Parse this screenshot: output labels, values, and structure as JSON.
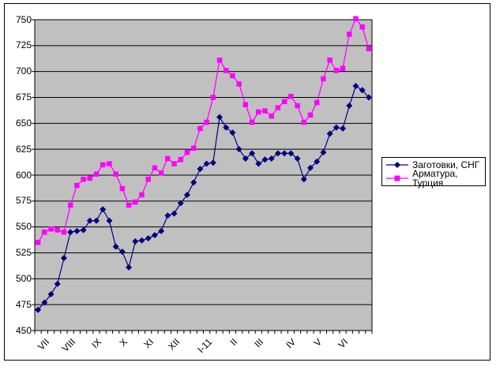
{
  "colors": {
    "background": "#FFFFFF",
    "frame_border": "#000000",
    "plot_background": "#C0C0C0",
    "gridline": "#000000",
    "text": "#000000",
    "series_billet": "#000080",
    "series_rebar": "#FF00FF"
  },
  "chart_data": {
    "type": "line",
    "title": "",
    "xlabel": "",
    "ylabel": "",
    "ylim": [
      450,
      750
    ],
    "y_tick_step": 25,
    "y_ticks": [
      750,
      725,
      700,
      675,
      650,
      625,
      600,
      575,
      550,
      525,
      500,
      475,
      450
    ],
    "n_points": 52,
    "grid": true,
    "legend_position": "right",
    "x_month_labels": [
      {
        "label": "VII",
        "index": 1
      },
      {
        "label": "VIII",
        "index": 5
      },
      {
        "label": "IX",
        "index": 9
      },
      {
        "label": "X",
        "index": 13
      },
      {
        "label": "XI",
        "index": 17
      },
      {
        "label": "XII",
        "index": 21
      },
      {
        "label": "I-11",
        "index": 26
      },
      {
        "label": "II",
        "index": 30
      },
      {
        "label": "III",
        "index": 34
      },
      {
        "label": "IV",
        "index": 39
      },
      {
        "label": "V",
        "index": 43
      },
      {
        "label": "VI",
        "index": 47
      }
    ],
    "series": [
      {
        "name": "Заготовки, СНГ",
        "color": "#000080",
        "marker": "diamond",
        "values": [
          470,
          477,
          485,
          495,
          520,
          545,
          546,
          547,
          556,
          556,
          567,
          556,
          531,
          526,
          511,
          536,
          537,
          539,
          542,
          546,
          561,
          563,
          573,
          581,
          593,
          606,
          611,
          612,
          656,
          646,
          641,
          625,
          616,
          621,
          611,
          615,
          616,
          621,
          621,
          621,
          616,
          596,
          607,
          613,
          622,
          640,
          646,
          645,
          667,
          686,
          682,
          675
        ]
      },
      {
        "name": "Арматура, Турция",
        "color": "#FF00FF",
        "marker": "square",
        "values": [
          535,
          545,
          548,
          547,
          545,
          571,
          590,
          596,
          597,
          601,
          610,
          611,
          601,
          587,
          571,
          574,
          581,
          596,
          607,
          602,
          616,
          611,
          615,
          622,
          626,
          645,
          651,
          675,
          711,
          701,
          696,
          688,
          668,
          651,
          661,
          662,
          657,
          665,
          671,
          676,
          667,
          651,
          658,
          670,
          693,
          711,
          701,
          703,
          736,
          751,
          743,
          722
        ]
      }
    ]
  }
}
